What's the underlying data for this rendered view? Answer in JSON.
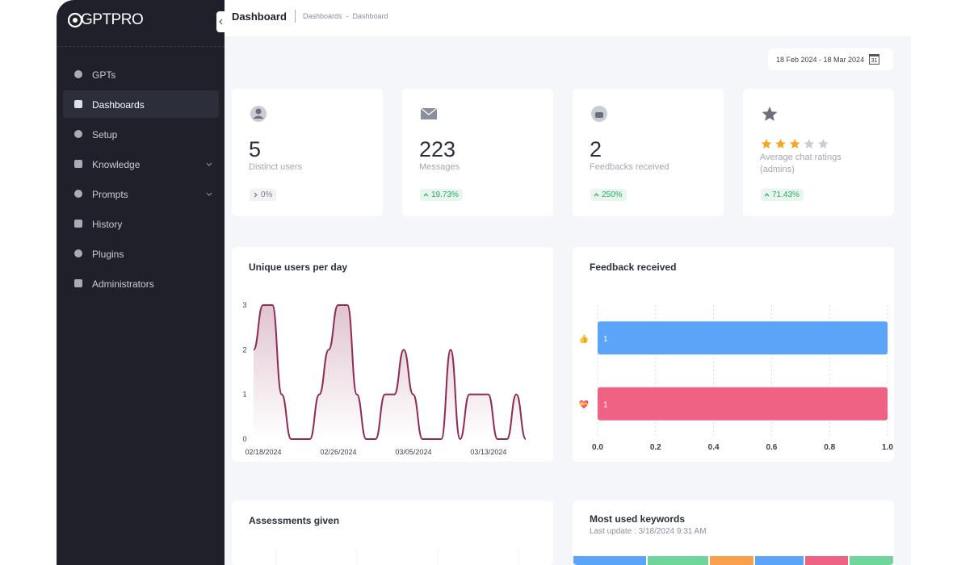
{
  "sidebar": {
    "logo": "GPTPRO",
    "nav": [
      {
        "label": "GPTs"
      },
      {
        "label": "Dashboards",
        "active": true
      },
      {
        "label": "Setup"
      },
      {
        "label": "Knowledge",
        "expandable": true
      },
      {
        "label": "Prompts",
        "expandable": true
      },
      {
        "label": "History"
      },
      {
        "label": "Plugins"
      },
      {
        "label": "Administrators"
      }
    ]
  },
  "header": {
    "title": "Dashboard",
    "breadcrumb": [
      "Dashboards",
      "Dashboard"
    ],
    "breadcrumb_separator": "-"
  },
  "date_range": {
    "label": "18 Feb 2024 - 18 Mar 2024",
    "calendar_day": "31"
  },
  "stats": [
    {
      "value": 5,
      "label": "Distinct users",
      "change": "0%"
    },
    {
      "value": 223,
      "label": "Messages",
      "change": "19.73%"
    },
    {
      "value": 2,
      "label": "Feedbacks received",
      "change": "250%"
    },
    {
      "rating": 3,
      "rating_max": 5,
      "label": "Average chat ratings (admins)",
      "change": "71.43%"
    }
  ],
  "panels": [
    {
      "title": "Assessments given"
    },
    {
      "title": "Most used keywords",
      "subtitle": "Last update : 3/18/2024 9:31 AM"
    }
  ],
  "chart_data": [
    {
      "type": "line",
      "title": "Unique users per day",
      "x": [
        "02/18/2024",
        "02/19/2024",
        "02/20/2024",
        "02/21/2024",
        "02/22/2024",
        "02/23/2024",
        "02/24/2024",
        "02/25/2024",
        "02/26/2024",
        "02/27/2024",
        "02/28/2024",
        "02/29/2024",
        "03/01/2024",
        "03/02/2024",
        "03/03/2024",
        "03/04/2024",
        "03/05/2024",
        "03/06/2024",
        "03/07/2024",
        "03/08/2024",
        "03/09/2024",
        "03/10/2024",
        "03/11/2024",
        "03/12/2024",
        "03/13/2024",
        "03/14/2024",
        "03/15/2024",
        "03/16/2024",
        "03/17/2024",
        "03/18/2024"
      ],
      "values": [
        2,
        3,
        3,
        1,
        0,
        0,
        0,
        1,
        2,
        3,
        3,
        1,
        0,
        0,
        1,
        1,
        2,
        1,
        0,
        0,
        0,
        2,
        0,
        1,
        1,
        1,
        0,
        0,
        1,
        0
      ],
      "color": "#8e2c55",
      "ylim": [
        0,
        3
      ],
      "yticks": [
        0,
        1,
        2,
        3
      ],
      "xticks": [
        "02/18/2024",
        "02/26/2024",
        "03/05/2024",
        "03/13/2024"
      ]
    },
    {
      "type": "bar",
      "orientation": "horizontal",
      "title": "Feedback received",
      "categories": [
        "👍",
        "💝"
      ],
      "values": [
        1,
        1
      ],
      "colors": [
        "#5ba4f8",
        "#f06283"
      ],
      "xlim": [
        0,
        1
      ],
      "xticks": [
        {
          "value": 0,
          "label": "0.0"
        },
        0.2,
        0.4,
        0.6,
        0.8,
        {
          "value": 1,
          "label": "1.0"
        }
      ],
      "grid": true
    }
  ]
}
